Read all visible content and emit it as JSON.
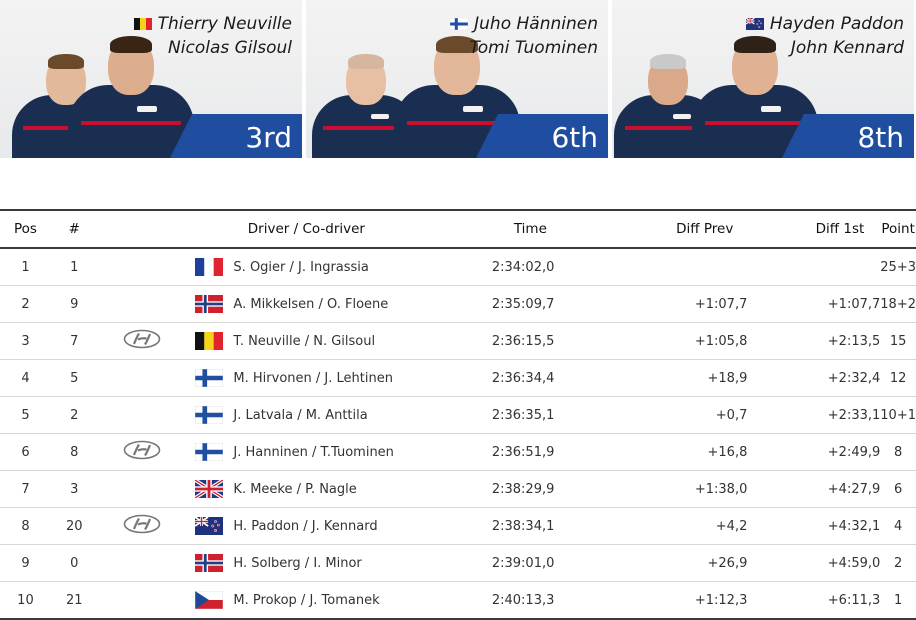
{
  "cards": [
    {
      "driver": "Thierry Neuville",
      "codriver": "Nicolas Gilsoul",
      "flag": "be",
      "position": "3rd"
    },
    {
      "driver": "Juho Hänninen",
      "codriver": "Tomi Tuominen",
      "flag": "fi",
      "position": "6th"
    },
    {
      "driver": "Hayden Paddon",
      "codriver": "John Kennard",
      "flag": "nz",
      "position": "8th"
    }
  ],
  "table": {
    "headers": {
      "pos": "Pos",
      "num": "#",
      "driver": "Driver / Co-driver",
      "time": "Time",
      "diff_prev": "Diff Prev",
      "diff_1st": "Diff 1st",
      "point": "Point"
    },
    "rows": [
      {
        "pos": "1",
        "num": "1",
        "hyundai": false,
        "flag": "fr",
        "crew": "S. Ogier / J. Ingrassia",
        "time": "2:34:02,0",
        "diff_prev": "",
        "diff_1st": "",
        "point": "25+3"
      },
      {
        "pos": "2",
        "num": "9",
        "hyundai": false,
        "flag": "no",
        "crew": "A. Mikkelsen / O. Floene",
        "time": "2:35:09,7",
        "diff_prev": "+1:07,7",
        "diff_1st": "+1:07,7",
        "point": "18+2"
      },
      {
        "pos": "3",
        "num": "7",
        "hyundai": true,
        "flag": "be",
        "crew": "T. Neuville / N. Gilsoul",
        "time": "2:36:15,5",
        "diff_prev": "+1:05,8",
        "diff_1st": "+2:13,5",
        "point": "15"
      },
      {
        "pos": "4",
        "num": "5",
        "hyundai": false,
        "flag": "fi",
        "crew": "M. Hirvonen / J. Lehtinen",
        "time": "2:36:34,4",
        "diff_prev": "+18,9",
        "diff_1st": "+2:32,4",
        "point": "12"
      },
      {
        "pos": "5",
        "num": "2",
        "hyundai": false,
        "flag": "fi",
        "crew": "J. Latvala / M. Anttila",
        "time": "2:36:35,1",
        "diff_prev": "+0,7",
        "diff_1st": "+2:33,1",
        "point": "10+1"
      },
      {
        "pos": "6",
        "num": "8",
        "hyundai": true,
        "flag": "fi",
        "crew": "J. Hanninen / T.Tuominen",
        "time": "2:36:51,9",
        "diff_prev": "+16,8",
        "diff_1st": "+2:49,9",
        "point": "8"
      },
      {
        "pos": "7",
        "num": "3",
        "hyundai": false,
        "flag": "gb",
        "crew": "K. Meeke / P. Nagle",
        "time": "2:38:29,9",
        "diff_prev": "+1:38,0",
        "diff_1st": "+4:27,9",
        "point": "6"
      },
      {
        "pos": "8",
        "num": "20",
        "hyundai": true,
        "flag": "nz",
        "crew": "H. Paddon / J. Kennard",
        "time": "2:38:34,1",
        "diff_prev": "+4,2",
        "diff_1st": "+4:32,1",
        "point": "4"
      },
      {
        "pos": "9",
        "num": "0",
        "hyundai": false,
        "flag": "no",
        "crew": "H. Solberg / I. Minor",
        "time": "2:39:01,0",
        "diff_prev": "+26,9",
        "diff_1st": "+4:59,0",
        "point": "2"
      },
      {
        "pos": "10",
        "num": "21",
        "hyundai": false,
        "flag": "cz",
        "crew": "M. Prokop / J. Tomanek",
        "time": "2:40:13,3",
        "diff_prev": "+1:12,3",
        "diff_1st": "+6:11,3",
        "point": "1"
      }
    ]
  },
  "icons": {
    "team_logo": "hyundai-logo-icon"
  }
}
